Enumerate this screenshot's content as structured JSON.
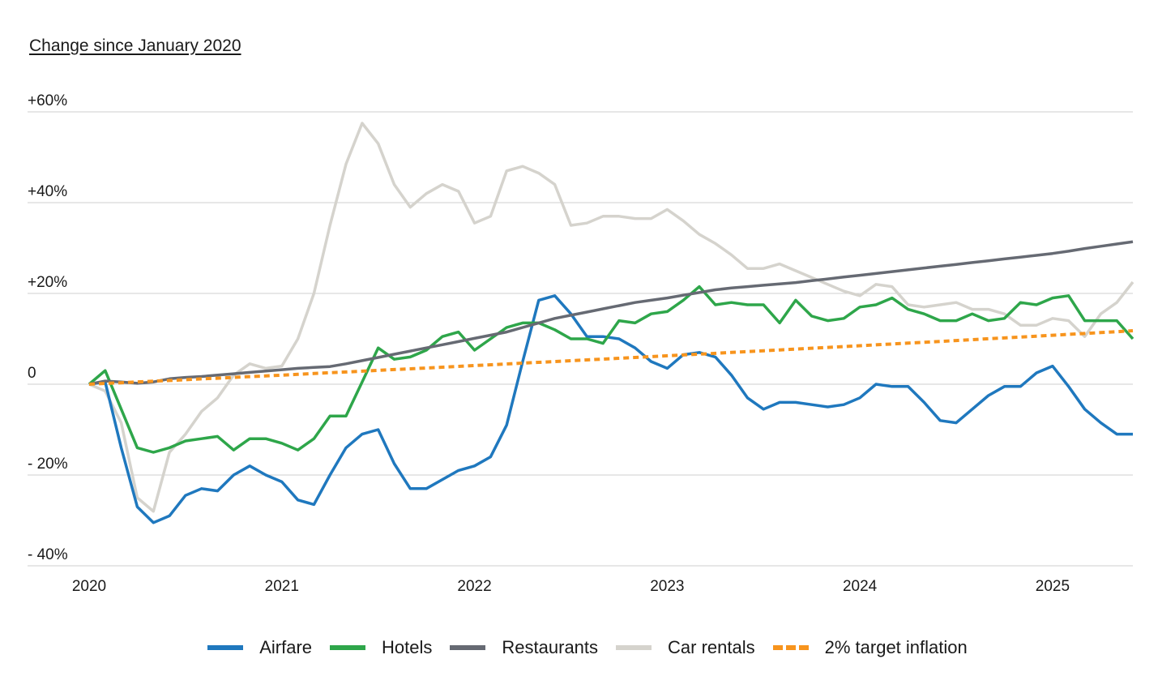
{
  "chart_data": {
    "type": "line",
    "subtitle": "Change since January 2020",
    "ylim": [
      -40,
      60
    ],
    "yticks": [
      {
        "value": 60,
        "label": "+60%"
      },
      {
        "value": 40,
        "label": "+40%"
      },
      {
        "value": 20,
        "label": "+20%"
      },
      {
        "value": 0,
        "label": "0"
      },
      {
        "value": -20,
        "label": "- 20%"
      },
      {
        "value": -40,
        "label": "- 40%"
      }
    ],
    "xticks": [
      "2020",
      "2021",
      "2022",
      "2023",
      "2024",
      "2025"
    ],
    "x_start": "2020-01",
    "x_end": "2025-05",
    "grid": "horizontal",
    "legend_position": "bottom",
    "series": [
      {
        "name": "Airfare",
        "color": "#1f78be",
        "dash": "solid",
        "values": [
          0,
          0.5,
          -14,
          -27,
          -30.5,
          -29,
          -24.5,
          -23,
          -23.5,
          -20,
          -18,
          -20,
          -21.5,
          -25.5,
          -26.5,
          -20,
          -14,
          -11,
          -10,
          -17.5,
          -23,
          -23,
          -21,
          -19,
          -18,
          -16,
          -9,
          5,
          18.5,
          19.5,
          15.5,
          10.5,
          10.5,
          10,
          8,
          5,
          3.5,
          6.5,
          7,
          6,
          2,
          -3,
          -5.5,
          -4,
          -4,
          -4.5,
          -5,
          -4.5,
          -3,
          0,
          -0.5,
          -0.5,
          -4,
          -8,
          -8.5,
          -5.5,
          -2.5,
          -0.5,
          -0.5,
          2.5,
          4,
          -0.5,
          -5.5,
          -8.5,
          -11,
          -11
        ]
      },
      {
        "name": "Hotels",
        "color": "#2ea64a",
        "dash": "solid",
        "values": [
          0,
          3,
          -5.5,
          -14,
          -15,
          -14,
          -12.5,
          -12,
          -11.5,
          -14.5,
          -12,
          -12,
          -13,
          -14.5,
          -12,
          -7,
          -7,
          0.5,
          8,
          5.5,
          6,
          7.5,
          10.5,
          11.5,
          7.5,
          10,
          12.5,
          13.5,
          13.5,
          12,
          10,
          10,
          9,
          14,
          13.5,
          15.5,
          16,
          18.5,
          21.5,
          17.5,
          18,
          17.5,
          17.5,
          13.5,
          18.5,
          15,
          14,
          14.5,
          17,
          17.5,
          19,
          16.5,
          15.5,
          14,
          14,
          15.5,
          14,
          14.5,
          18,
          17.5,
          19,
          19.5,
          14,
          14,
          14,
          10
        ]
      },
      {
        "name": "Restaurants",
        "color": "#666a73",
        "dash": "solid",
        "values": [
          0,
          0.7,
          0.5,
          0.2,
          0.5,
          1.2,
          1.5,
          1.7,
          2,
          2.3,
          2.6,
          2.9,
          3.2,
          3.5,
          3.7,
          3.9,
          4.5,
          5.2,
          5.9,
          6.6,
          7.3,
          8,
          8.7,
          9.4,
          10.1,
          10.8,
          11.5,
          12.5,
          13.5,
          14.5,
          15.2,
          15.9,
          16.6,
          17.3,
          18,
          18.5,
          19,
          19.6,
          20.2,
          20.8,
          21.2,
          21.5,
          21.8,
          22.1,
          22.4,
          22.8,
          23.2,
          23.6,
          24,
          24.4,
          24.8,
          25.2,
          25.6,
          26,
          26.4,
          26.8,
          27.2,
          27.6,
          28,
          28.4,
          28.8,
          29.3,
          29.9,
          30.4,
          30.9,
          31.4
        ]
      },
      {
        "name": "Car rentals",
        "color": "#d5d3cd",
        "dash": "solid",
        "values": [
          0,
          -1.5,
          -8.5,
          -25,
          -28,
          -15,
          -11,
          -6,
          -3,
          2,
          4.5,
          3.5,
          4,
          10,
          20,
          35,
          48.5,
          57.5,
          53,
          44,
          39,
          42,
          44,
          42.5,
          35.5,
          37,
          47,
          48,
          46.5,
          44,
          35,
          35.5,
          37,
          37,
          36.5,
          36.5,
          38.5,
          36,
          33,
          31,
          28.5,
          25.5,
          25.5,
          26.5,
          25,
          23.5,
          22,
          20.5,
          19.5,
          22,
          21.5,
          17.5,
          17,
          17.5,
          18,
          16.5,
          16.5,
          15.5,
          13,
          13,
          14.5,
          14,
          10.5,
          15.5,
          18,
          22.5
        ]
      },
      {
        "name": "2% target inflation",
        "color": "#f7941d",
        "dash": "dashed",
        "values": [
          0,
          0.17,
          0.33,
          0.5,
          0.67,
          0.83,
          1,
          1.17,
          1.33,
          1.5,
          1.67,
          1.83,
          2,
          2.18,
          2.35,
          2.53,
          2.7,
          2.88,
          3.05,
          3.23,
          3.4,
          3.58,
          3.75,
          3.93,
          4.1,
          4.28,
          4.46,
          4.64,
          4.82,
          5,
          5.18,
          5.36,
          5.54,
          5.72,
          5.9,
          6.08,
          6.26,
          6.44,
          6.63,
          6.81,
          7,
          7.18,
          7.37,
          7.55,
          7.74,
          7.92,
          8.11,
          8.3,
          8.48,
          8.67,
          8.86,
          9.05,
          9.24,
          9.43,
          9.62,
          9.82,
          10.01,
          10.2,
          10.4,
          10.59,
          10.79,
          10.98,
          11.18,
          11.38,
          11.58,
          11.78
        ]
      }
    ]
  }
}
